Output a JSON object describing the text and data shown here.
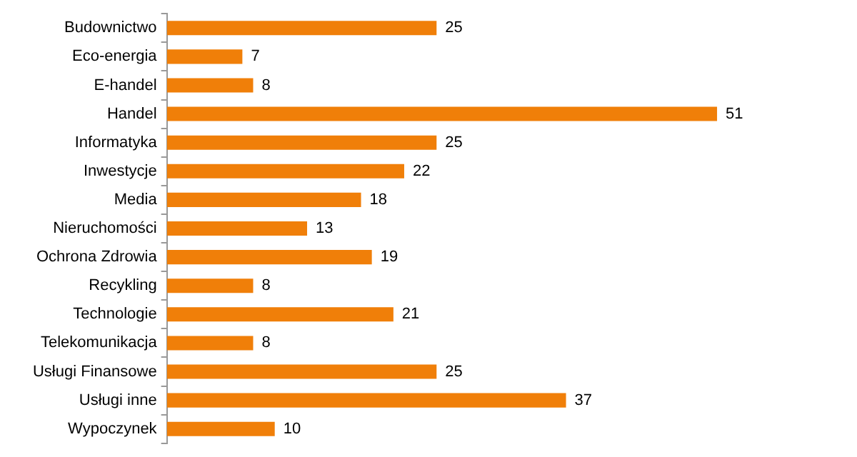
{
  "chart_data": {
    "type": "bar",
    "orientation": "horizontal",
    "categories": [
      "Budownictwo",
      "Eco-energia",
      "E-handel",
      "Handel",
      "Informatyka",
      "Inwestycje",
      "Media",
      "Nieruchomości",
      "Ochrona Zdrowia",
      "Recykling",
      "Technologie",
      "Telekomunikacja",
      "Usługi Finansowe",
      "Usługi inne",
      "Wypoczynek"
    ],
    "values": [
      25,
      7,
      8,
      51,
      25,
      22,
      18,
      13,
      19,
      8,
      21,
      8,
      25,
      37,
      10
    ],
    "color": "#f07f09",
    "data_labels": true,
    "legend": false,
    "tick_labels": "y"
  }
}
